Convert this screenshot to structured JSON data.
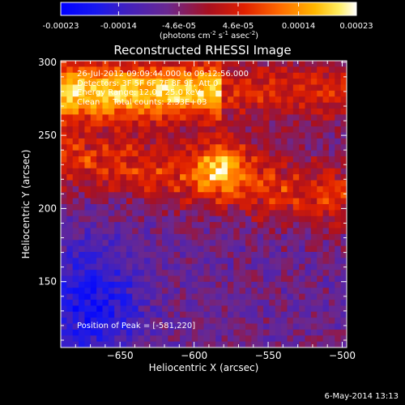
{
  "colorbar": {
    "tick_labels": [
      "-0.00023",
      "-0.00014",
      "-4.6e-05",
      "4.6e-05",
      "0.00014",
      "0.00023"
    ],
    "tick_values": [
      -0.00023,
      -0.00014,
      -4.6e-05,
      4.6e-05,
      0.00014,
      0.00023
    ],
    "range": [
      -0.00023,
      0.00023
    ],
    "units_label": "(photons cm",
    "units_exp1": "-2",
    "units_mid": " s",
    "units_exp2": "-1",
    "units_tail": " asec",
    "units_exp3": "-2",
    "units_close": ")"
  },
  "image": {
    "title": "Reconstructed RHESSI Image",
    "xlabel": "Heliocentric X (arcsec)",
    "ylabel": "Heliocentric Y (arcsec)",
    "xlim": [
      -690,
      -497
    ],
    "ylim": [
      105,
      301
    ],
    "x_ticks": [
      -650,
      -600,
      -550,
      -500
    ],
    "x_tick_labels": [
      "−650",
      "−600",
      "−550",
      "−500"
    ],
    "y_ticks": [
      150,
      200,
      250,
      300
    ],
    "y_tick_labels": [
      "150",
      "200",
      "250",
      "300"
    ],
    "annotations": [
      "26-Jul-2012 09:09:44.000 to 09:12:56.000",
      "Detectors: 3F 5F 6F 7F 8F 9F, Att 0",
      "Energy Range: 12.0 - 25.0 keV",
      "Clean     Total counts: 2.33E+03"
    ],
    "peak_label": "Position of Peak = [-581,220]",
    "peak": [
      -581,
      220
    ]
  },
  "footer": {
    "date": "6-May-2014 13:13"
  },
  "colors": {
    "background": "#000000",
    "text": "#ffffff",
    "colormap": [
      "#0000ff",
      "#4020c0",
      "#6a2890",
      "#b01010",
      "#ff5000",
      "#ffc000",
      "#ffffff"
    ]
  }
}
